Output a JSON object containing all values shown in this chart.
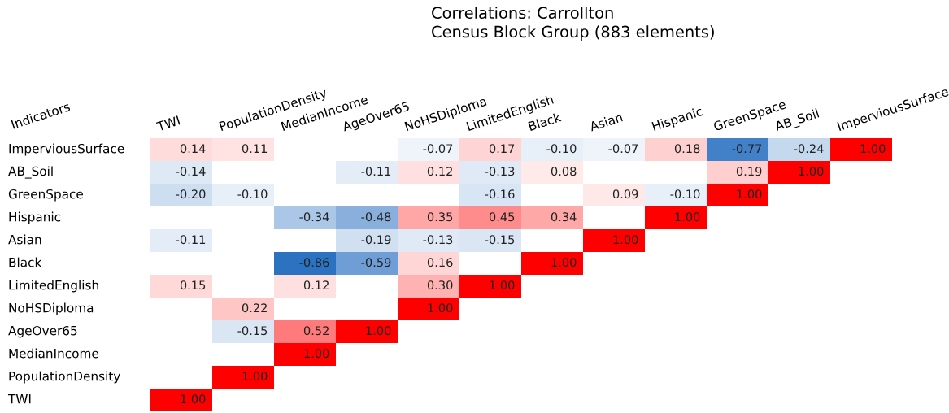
{
  "chart_data": {
    "type": "heatmap",
    "title": "Correlations: Carrollton\nCensus Block Group (883 elements)",
    "ylabel": "Indicators",
    "categories": [
      "TWI",
      "PopulationDensity",
      "MedianIncome",
      "AgeOver65",
      "NoHSDiploma",
      "LimitedEnglish",
      "Black",
      "Asian",
      "Hispanic",
      "GreenSpace",
      "AB_Soil",
      "ImperviousSurface"
    ],
    "y_categories": [
      "ImperviousSurface",
      "AB_Soil",
      "GreenSpace",
      "Hispanic",
      "Asian",
      "Black",
      "LimitedEnglish",
      "NoHSDiploma",
      "AgeOver65",
      "MedianIncome",
      "PopulationDensity",
      "TWI"
    ],
    "cells": [
      [
        0.14,
        0.11,
        null,
        null,
        -0.07,
        0.17,
        -0.1,
        -0.07,
        0.18,
        -0.77,
        -0.24,
        1.0
      ],
      [
        -0.14,
        null,
        null,
        -0.11,
        0.12,
        -0.13,
        0.08,
        null,
        null,
        0.19,
        1.0,
        null
      ],
      [
        -0.2,
        -0.1,
        null,
        null,
        null,
        -0.16,
        null,
        0.09,
        -0.1,
        1.0,
        null,
        null
      ],
      [
        null,
        null,
        -0.34,
        -0.48,
        0.35,
        0.45,
        0.34,
        null,
        1.0,
        null,
        null,
        null
      ],
      [
        -0.11,
        null,
        null,
        -0.19,
        -0.13,
        -0.15,
        null,
        1.0,
        null,
        null,
        null,
        null
      ],
      [
        null,
        null,
        -0.86,
        -0.59,
        0.16,
        null,
        1.0,
        null,
        null,
        null,
        null,
        null
      ],
      [
        0.15,
        null,
        0.12,
        null,
        0.3,
        1.0,
        null,
        null,
        null,
        null,
        null,
        null
      ],
      [
        null,
        0.22,
        null,
        null,
        1.0,
        null,
        null,
        null,
        null,
        null,
        null,
        null
      ],
      [
        null,
        -0.15,
        0.52,
        1.0,
        null,
        null,
        null,
        null,
        null,
        null,
        null,
        null
      ],
      [
        null,
        null,
        1.0,
        null,
        null,
        null,
        null,
        null,
        null,
        null,
        null,
        null
      ],
      [
        null,
        1.0,
        null,
        null,
        null,
        null,
        null,
        null,
        null,
        null,
        null,
        null
      ],
      [
        1.0,
        null,
        null,
        null,
        null,
        null,
        null,
        null,
        null,
        null,
        null,
        null
      ]
    ],
    "cell_labels": [
      [
        "0.14",
        "0.11",
        null,
        null,
        "-0.07",
        "0.17",
        "-0.10",
        "-0.07",
        "0.18",
        "-0.77",
        "-0.24",
        "1.00"
      ],
      [
        "-0.14",
        null,
        null,
        "-0.11",
        "0.12",
        "-0.13",
        "0.08",
        null,
        null,
        "0.19",
        "1.00",
        null
      ],
      [
        "-0.20",
        "-0.10",
        null,
        null,
        null,
        "-0.16",
        null,
        "0.09",
        "-0.10",
        "1.00",
        null,
        null
      ],
      [
        null,
        null,
        "-0.34",
        "-0.48",
        "0.35",
        "0.45",
        "0.34",
        null,
        "1.00",
        null,
        null,
        null
      ],
      [
        "-0.11",
        null,
        null,
        "-0.19",
        "-0.13",
        "-0.15",
        null,
        "1.00",
        null,
        null,
        null,
        null
      ],
      [
        null,
        null,
        "-0.86",
        "-0.59",
        "0.16",
        null,
        "1.00",
        null,
        null,
        null,
        null,
        null
      ],
      [
        "0.15",
        null,
        "0.12",
        null,
        "0.30",
        "1.00",
        null,
        null,
        null,
        null,
        null,
        null
      ],
      [
        null,
        "0.22",
        null,
        null,
        "1.00",
        null,
        null,
        null,
        null,
        null,
        null,
        null
      ],
      [
        null,
        "-0.15",
        "0.52",
        "1.00",
        null,
        null,
        null,
        null,
        null,
        null,
        null,
        null
      ],
      [
        null,
        null,
        "1.00",
        null,
        null,
        null,
        null,
        null,
        null,
        null,
        null,
        null
      ],
      [
        null,
        "1.00",
        null,
        null,
        null,
        null,
        null,
        null,
        null,
        null,
        null,
        null
      ],
      [
        "1.00",
        null,
        null,
        null,
        null,
        null,
        null,
        null,
        null,
        null,
        null,
        null
      ]
    ]
  }
}
